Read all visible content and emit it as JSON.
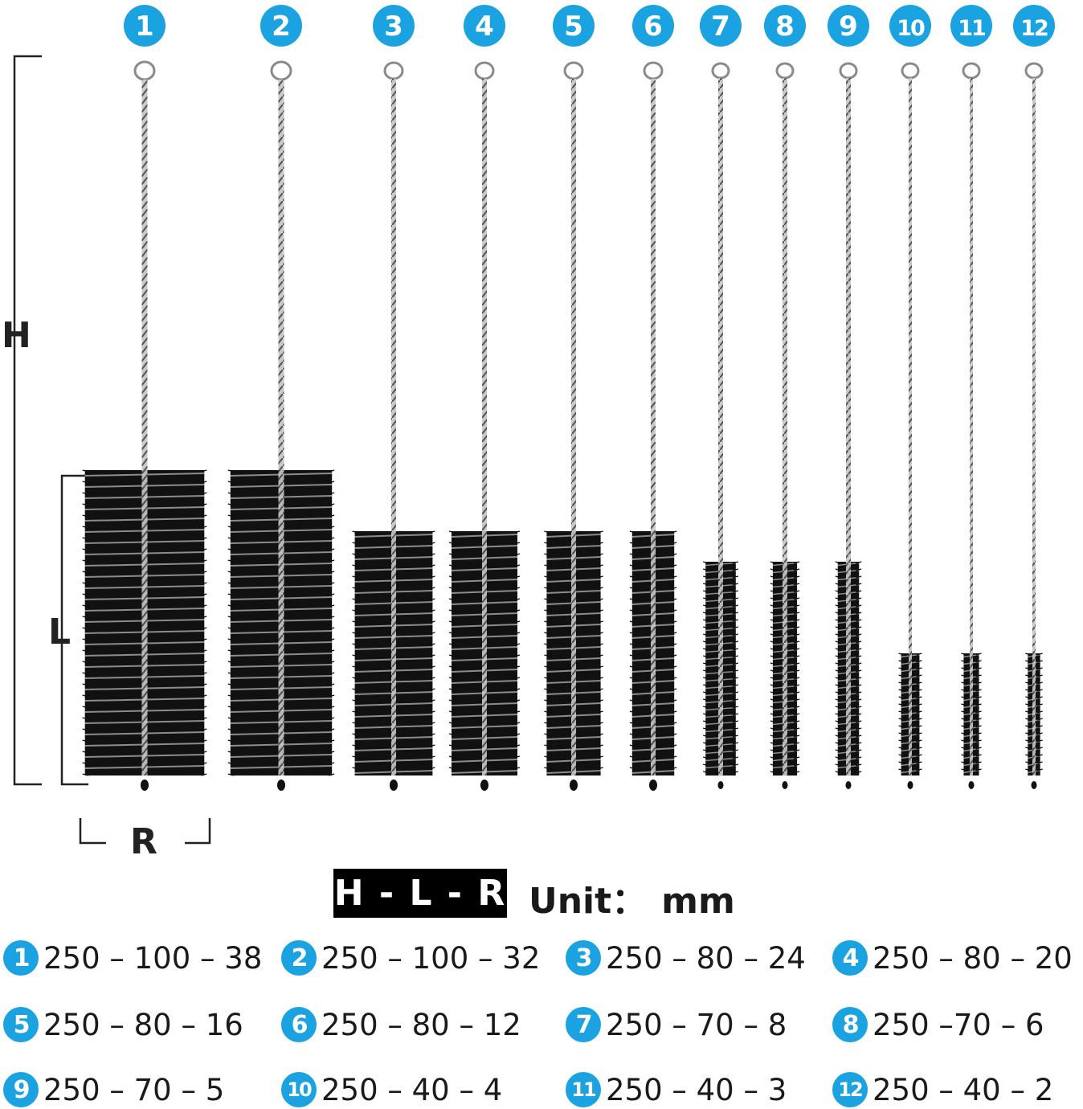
{
  "dimension_labels": {
    "height": "H",
    "length": "L",
    "radius": "R"
  },
  "legend": {
    "format": "H - L - R",
    "unit_label": "Unit：",
    "unit_value": "mm"
  },
  "colors": {
    "badge": "#1aa3e0",
    "bristle": "#0d0d0d",
    "wire": "#9a9a9a",
    "text": "#1a1a1a"
  },
  "brushes": [
    {
      "number": "1",
      "spec": "250 – 100 – 38",
      "H": 250,
      "L": 100,
      "R": 38
    },
    {
      "number": "2",
      "spec": "250 – 100 – 32",
      "H": 250,
      "L": 100,
      "R": 32
    },
    {
      "number": "3",
      "spec": "250 – 80 – 24",
      "H": 250,
      "L": 80,
      "R": 24
    },
    {
      "number": "4",
      "spec": "250 – 80 – 20",
      "H": 250,
      "L": 80,
      "R": 20
    },
    {
      "number": "5",
      "spec": "250 – 80 – 16",
      "H": 250,
      "L": 80,
      "R": 16
    },
    {
      "number": "6",
      "spec": "250 – 80 – 12",
      "H": 250,
      "L": 80,
      "R": 12
    },
    {
      "number": "7",
      "spec": "250 – 70 – 8",
      "H": 250,
      "L": 70,
      "R": 8
    },
    {
      "number": "8",
      "spec": "250 –70 – 6",
      "H": 250,
      "L": 70,
      "R": 6
    },
    {
      "number": "9",
      "spec": "250 – 70 – 5",
      "H": 250,
      "L": 70,
      "R": 5
    },
    {
      "number": "10",
      "spec": "250 – 40 – 4",
      "H": 250,
      "L": 40,
      "R": 4
    },
    {
      "number": "11",
      "spec": "250 – 40 – 3",
      "H": 250,
      "L": 40,
      "R": 3
    },
    {
      "number": "12",
      "spec": "250 – 40 – 2",
      "H": 250,
      "L": 40,
      "R": 2
    }
  ]
}
